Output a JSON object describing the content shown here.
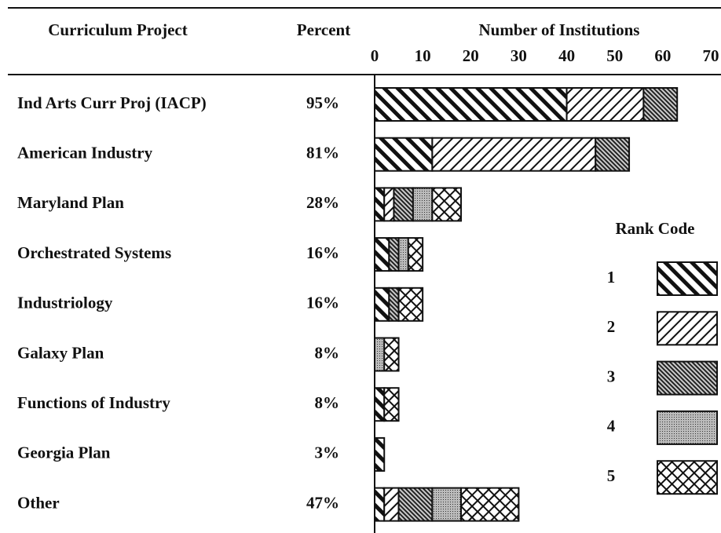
{
  "chart_data": {
    "type": "stacked_bar_horizontal",
    "category_title": "Curriculum Project",
    "percent_title": "Percent",
    "xlabel": "Number of Institutions",
    "legend_title": "Rank Code",
    "categories": [
      "Ind Arts Curr Proj (IACP)",
      "American Industry",
      "Maryland Plan",
      "Orchestrated Systems",
      "Industriology",
      "Galaxy Plan",
      "Functions of Industry",
      "Georgia Plan",
      "Other"
    ],
    "percent_labels": [
      "95%",
      "81%",
      "28%",
      "16%",
      "16%",
      "8%",
      "8%",
      "3%",
      "47%"
    ],
    "series": [
      {
        "name": "1",
        "color": "#111111",
        "values": [
          40,
          12,
          2,
          3,
          3,
          0,
          2,
          2,
          2
        ]
      },
      {
        "name": "2",
        "color": "#111111",
        "values": [
          16,
          34,
          2,
          0,
          0,
          0,
          0,
          0,
          3
        ]
      },
      {
        "name": "3",
        "color": "#111111",
        "values": [
          7,
          7,
          4,
          2,
          2,
          0,
          0,
          0,
          7
        ]
      },
      {
        "name": "4",
        "color": "#111111",
        "values": [
          0,
          0,
          4,
          2,
          0,
          2,
          0,
          0,
          6
        ]
      },
      {
        "name": "5",
        "color": "#111111",
        "values": [
          0,
          0,
          6,
          3,
          5,
          3,
          3,
          0,
          12
        ]
      }
    ],
    "xlim": [
      0,
      70
    ],
    "xticks": [
      0,
      10,
      20,
      30,
      40,
      50,
      60,
      70
    ]
  }
}
